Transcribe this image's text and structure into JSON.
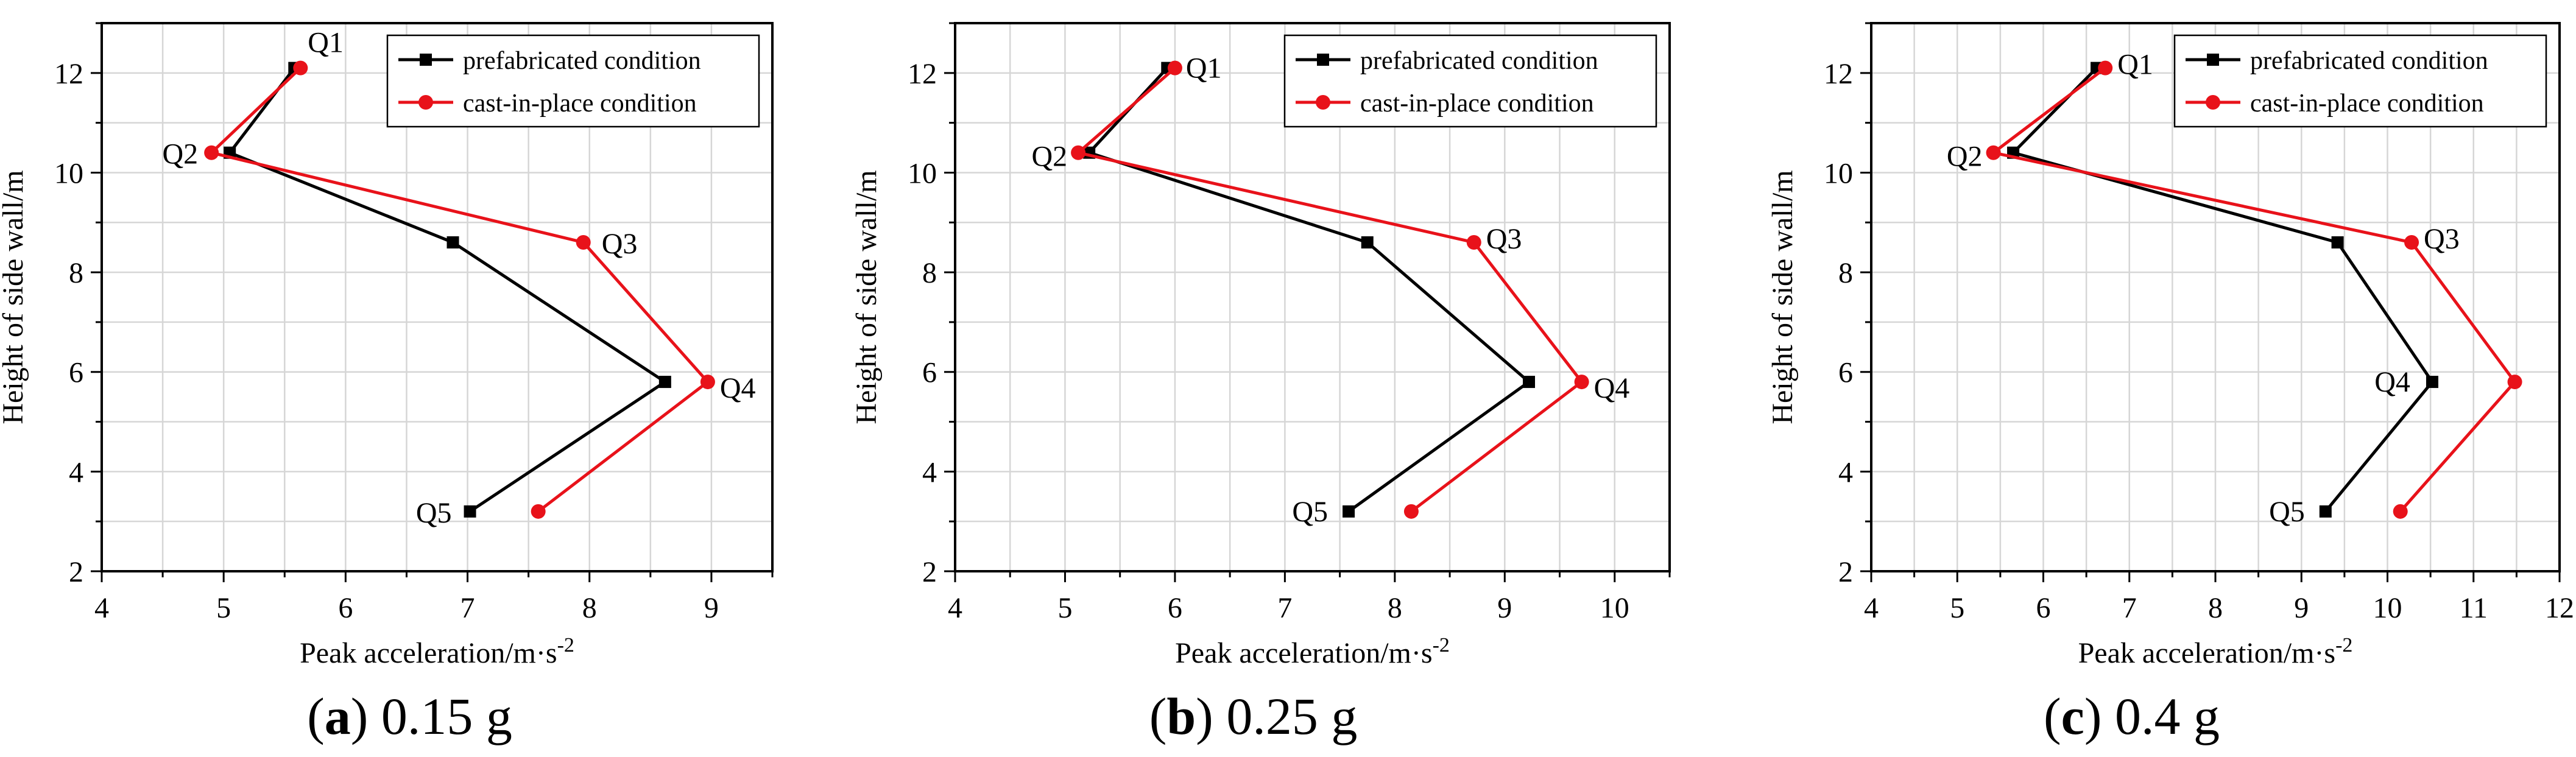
{
  "figure": {
    "panels": [
      {
        "letter": "a",
        "caption": "0.15 g"
      },
      {
        "letter": "b",
        "caption": "0.25 g"
      },
      {
        "letter": "c",
        "caption": "0.4 g"
      }
    ]
  },
  "chart_data": [
    {
      "type": "line",
      "title": "",
      "caption_letter": "a",
      "caption": "0.15 g",
      "xlabel": "Peak acceleration/m·s",
      "xlabel_superscript": "-2",
      "ylabel": "Height of side wall/m",
      "xlim": [
        4,
        9.5
      ],
      "ylim": [
        2,
        13
      ],
      "xticks": [
        "4",
        "5",
        "6",
        "7",
        "8",
        "9"
      ],
      "yticks": [
        "2",
        "4",
        "6",
        "8",
        "10",
        "12"
      ],
      "grid": true,
      "legend_position": "top-right",
      "series": [
        {
          "name": "prefabricated condition",
          "color": "#000000",
          "marker": "square",
          "x": [
            5.58,
            5.05,
            6.88,
            8.62,
            7.02
          ],
          "y": [
            12.1,
            10.4,
            8.6,
            5.8,
            3.2
          ]
        },
        {
          "name": "cast-in-place condition",
          "color": "#e8121a",
          "marker": "circle",
          "x": [
            5.63,
            4.9,
            7.95,
            8.97,
            7.58
          ],
          "y": [
            12.1,
            10.4,
            8.6,
            5.8,
            3.2
          ]
        }
      ],
      "annotations": [
        "Q1",
        "Q2",
        "Q3",
        "Q4",
        "Q5"
      ]
    },
    {
      "type": "line",
      "title": "",
      "caption_letter": "b",
      "caption": "0.25 g",
      "xlabel": "Peak acceleration/m·s",
      "xlabel_superscript": "-2",
      "ylabel": "Height of side wall/m",
      "xlim": [
        4,
        10.5
      ],
      "ylim": [
        2,
        13
      ],
      "xticks": [
        "4",
        "5",
        "6",
        "7",
        "8",
        "9",
        "10"
      ],
      "yticks": [
        "2",
        "4",
        "6",
        "8",
        "10",
        "12"
      ],
      "grid": true,
      "legend_position": "top-right",
      "series": [
        {
          "name": "prefabricated condition",
          "color": "#000000",
          "marker": "square",
          "x": [
            5.93,
            5.22,
            7.75,
            9.22,
            7.58
          ],
          "y": [
            12.1,
            10.4,
            8.6,
            5.8,
            3.2
          ]
        },
        {
          "name": "cast-in-place condition",
          "color": "#e8121a",
          "marker": "circle",
          "x": [
            6.0,
            5.12,
            8.72,
            9.7,
            8.15
          ],
          "y": [
            12.1,
            10.4,
            8.6,
            5.8,
            3.2
          ]
        }
      ],
      "annotations": [
        "Q1",
        "Q2",
        "Q3",
        "Q4",
        "Q5"
      ]
    },
    {
      "type": "line",
      "title": "",
      "caption_letter": "c",
      "caption": "0.4 g",
      "xlabel": "Peak acceleration/m·s",
      "xlabel_superscript": "-2",
      "ylabel": "Height of side wall/m",
      "xlim": [
        4,
        12
      ],
      "ylim": [
        2,
        13
      ],
      "xticks": [
        "4",
        "5",
        "6",
        "7",
        "8",
        "9",
        "10",
        "11",
        "12"
      ],
      "yticks": [
        "2",
        "4",
        "6",
        "8",
        "10",
        "12"
      ],
      "grid": true,
      "legend_position": "top-right",
      "series": [
        {
          "name": "prefabricated condition",
          "color": "#000000",
          "marker": "square",
          "x": [
            6.62,
            5.65,
            9.42,
            10.52,
            9.28
          ],
          "y": [
            12.1,
            10.4,
            8.6,
            5.8,
            3.2
          ]
        },
        {
          "name": "cast-in-place condition",
          "color": "#e8121a",
          "marker": "circle",
          "x": [
            6.72,
            5.42,
            10.28,
            11.48,
            10.15
          ],
          "y": [
            12.1,
            10.4,
            8.6,
            5.8,
            3.2
          ]
        }
      ],
      "annotations": [
        "Q1",
        "Q2",
        "Q3",
        "Q4",
        "Q5"
      ]
    }
  ]
}
